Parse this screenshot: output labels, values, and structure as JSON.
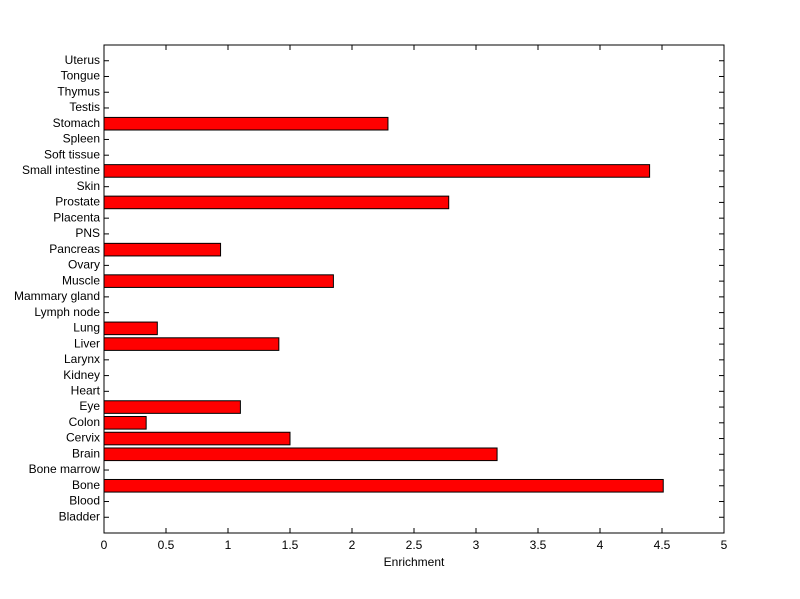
{
  "chart_data": {
    "type": "bar",
    "orientation": "horizontal",
    "xlabel": "Enrichment",
    "categories": [
      "Bladder",
      "Blood",
      "Bone",
      "Bone marrow",
      "Brain",
      "Cervix",
      "Colon",
      "Eye",
      "Heart",
      "Kidney",
      "Larynx",
      "Liver",
      "Lung",
      "Lymph node",
      "Mammary gland",
      "Muscle",
      "Ovary",
      "Pancreas",
      "PNS",
      "Placenta",
      "Prostate",
      "Skin",
      "Small intestine",
      "Soft tissue",
      "Spleen",
      "Stomach",
      "Testis",
      "Thymus",
      "Tongue",
      "Uterus"
    ],
    "values": [
      0,
      0,
      4.51,
      0,
      3.17,
      1.5,
      0.34,
      1.1,
      0,
      0,
      0,
      1.41,
      0.43,
      0,
      0,
      1.85,
      0,
      0.94,
      0,
      0,
      2.78,
      0,
      4.4,
      0,
      0,
      2.29,
      0,
      0,
      0,
      0
    ],
    "color": "#ff0000",
    "xlim": [
      0,
      5
    ],
    "xticks": [
      0,
      0.5,
      1,
      1.5,
      2,
      2.5,
      3,
      3.5,
      4,
      4.5,
      5
    ]
  }
}
